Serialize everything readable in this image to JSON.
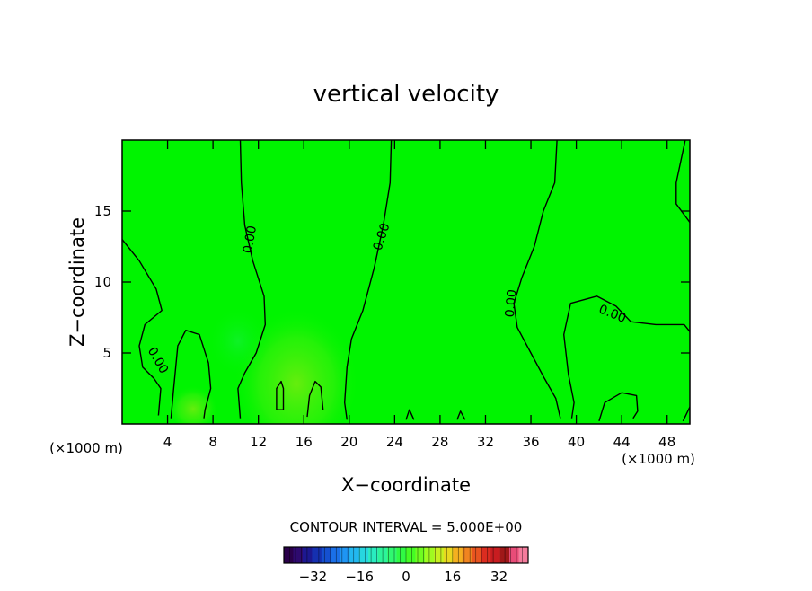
{
  "chart_data": {
    "type": "contour",
    "title": "vertical velocity",
    "xlabel": "X−coordinate",
    "ylabel": "Z−coordinate",
    "x_unit_left": "(×1000 m)",
    "x_unit_right": "(×1000 m)",
    "xlim": [
      0,
      50
    ],
    "ylim": [
      0,
      20
    ],
    "x_ticks": [
      4,
      8,
      12,
      16,
      20,
      24,
      28,
      32,
      36,
      40,
      44,
      48
    ],
    "y_ticks": [
      5,
      10,
      15
    ],
    "x_tick_labels": [
      "4",
      "8",
      "12",
      "16",
      "20",
      "24",
      "28",
      "32",
      "36",
      "40",
      "44",
      "48"
    ],
    "y_tick_labels": [
      "5",
      "10",
      "15"
    ],
    "contour_level": "0.00",
    "contour_labels": [
      {
        "text": "0.00",
        "x": 11.2,
        "y": 13.0,
        "angle": -80
      },
      {
        "text": "0.00",
        "x": 22.8,
        "y": 13.2,
        "angle": -72
      },
      {
        "text": "0.00",
        "x": 34.2,
        "y": 8.5,
        "angle": -85
      },
      {
        "text": "0.00",
        "x": 43.2,
        "y": 7.8,
        "angle": 22
      },
      {
        "text": "0.00",
        "x": 3.2,
        "y": 4.5,
        "angle": 60
      }
    ],
    "contour_lines": [
      [
        [
          0,
          13
        ],
        [
          1.5,
          11.5
        ],
        [
          3,
          9.5
        ],
        [
          3.5,
          8
        ],
        [
          2,
          7
        ],
        [
          1.5,
          5.5
        ],
        [
          1.8,
          4
        ],
        [
          2.8,
          3.2
        ],
        [
          3.4,
          2.5
        ],
        [
          3.2,
          0.6
        ]
      ],
      [
        [
          10.4,
          20
        ],
        [
          10.5,
          17
        ],
        [
          10.8,
          14
        ],
        [
          11.5,
          11.5
        ],
        [
          12.5,
          9
        ],
        [
          12.6,
          7
        ],
        [
          11.8,
          5
        ],
        [
          10.8,
          3.6
        ],
        [
          10.2,
          2.5
        ],
        [
          10.4,
          0.4
        ]
      ],
      [
        [
          23.7,
          20
        ],
        [
          23.6,
          17
        ],
        [
          23,
          14
        ],
        [
          22.2,
          11
        ],
        [
          21.2,
          8
        ],
        [
          20.2,
          6
        ],
        [
          19.8,
          4
        ],
        [
          19.6,
          1.5
        ],
        [
          19.8,
          0.3
        ]
      ],
      [
        [
          38.3,
          20
        ],
        [
          38.1,
          17
        ],
        [
          37.1,
          15
        ],
        [
          36.3,
          12.5
        ],
        [
          35.2,
          10.3
        ],
        [
          34.5,
          8.5
        ],
        [
          34.8,
          6.8
        ],
        [
          36,
          5
        ],
        [
          37.2,
          3.2
        ],
        [
          38.2,
          1.8
        ],
        [
          38.6,
          0.4
        ]
      ],
      [
        [
          49.6,
          20
        ],
        [
          48.8,
          17
        ],
        [
          48.8,
          15.5
        ],
        [
          50,
          14.2
        ]
      ],
      [
        [
          50,
          6.5
        ],
        [
          49.5,
          7
        ],
        [
          47,
          7
        ],
        [
          44.8,
          7.2
        ],
        [
          43.5,
          8.3
        ],
        [
          41.8,
          9.0
        ],
        [
          39.5,
          8.5
        ],
        [
          38.9,
          6.3
        ],
        [
          39.3,
          3.5
        ],
        [
          39.8,
          1.5
        ],
        [
          39.6,
          0.4
        ]
      ],
      [
        [
          4.3,
          0.4
        ],
        [
          4.5,
          2.2
        ],
        [
          4.9,
          5.5
        ],
        [
          5.6,
          6.6
        ],
        [
          6.8,
          6.3
        ],
        [
          7.6,
          4.3
        ],
        [
          7.8,
          2.5
        ],
        [
          7.3,
          1.0
        ],
        [
          7.2,
          0.4
        ]
      ],
      [
        [
          13.6,
          1.0
        ],
        [
          13.6,
          2.5
        ],
        [
          14,
          3.0
        ],
        [
          14.2,
          2.5
        ],
        [
          14.2,
          1.0
        ],
        [
          13.6,
          1.0
        ]
      ],
      [
        [
          16.3,
          0.5
        ],
        [
          16.5,
          2.0
        ],
        [
          17.0,
          3.0
        ],
        [
          17.5,
          2.6
        ],
        [
          17.7,
          1.0
        ]
      ],
      [
        [
          25,
          0.3
        ],
        [
          25.3,
          1.0
        ],
        [
          25.7,
          0.3
        ]
      ],
      [
        [
          29.5,
          0.3
        ],
        [
          29.8,
          0.9
        ],
        [
          30.2,
          0.3
        ]
      ],
      [
        [
          42,
          0.2
        ],
        [
          42.5,
          1.5
        ],
        [
          44,
          2.2
        ],
        [
          45.3,
          2.0
        ],
        [
          45.4,
          0.9
        ],
        [
          45.0,
          0.4
        ]
      ],
      [
        [
          49.4,
          0.2
        ],
        [
          50,
          1.2
        ]
      ]
    ],
    "colorbar": {
      "label": "CONTOUR INTERVAL = 5.000E+00",
      "range": [
        -42,
        42
      ],
      "tick_values": [
        -32,
        -16,
        0,
        16,
        32
      ],
      "tick_labels": [
        "−32",
        "−16",
        "0",
        "16",
        "32"
      ],
      "colors": [
        "#2a004a",
        "#2e0a6e",
        "#1c1890",
        "#1530b0",
        "#1550d0",
        "#1a70e8",
        "#1e95f4",
        "#22b8f0",
        "#27d6e0",
        "#29ecc0",
        "#2cf49a",
        "#30f870",
        "#30fa44",
        "#44fc24",
        "#70fc20",
        "#a0fa20",
        "#c8f020",
        "#e8d820",
        "#f4b020",
        "#f08420",
        "#e85420",
        "#dc2c20",
        "#c81c20",
        "#a01818",
        "#e84c78",
        "#f47c9c"
      ]
    },
    "field_color": "#00f400",
    "line_color": "#000000"
  }
}
